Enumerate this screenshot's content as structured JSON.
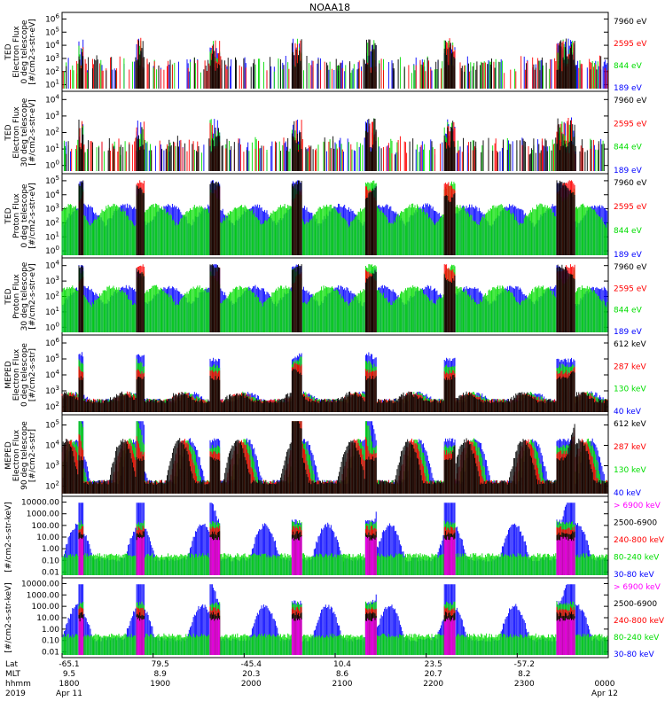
{
  "title": "NOAA18",
  "colors": {
    "blue": "#0000ff",
    "red": "#ff0000",
    "green": "#00dd00",
    "black": "#000000",
    "magenta": "#ff00ff"
  },
  "chart_data": [
    {
      "type": "line",
      "panel": "ted-electron-0",
      "ylabel": [
        "TED",
        "Electron Flux",
        "0 deg telescope",
        "[#/cm2-s-str-eV]"
      ],
      "yticks": [
        "10^1",
        "10^2",
        "10^3",
        "10^4",
        "10^5",
        "10^6"
      ],
      "yscale": "log",
      "legend": [
        "7960 eV",
        "2595 eV",
        "844 eV",
        "189 eV"
      ],
      "legend_colors": [
        "black",
        "red",
        "green",
        "blue"
      ]
    },
    {
      "type": "line",
      "panel": "ted-electron-30",
      "ylabel": [
        "TED",
        "Electron Flux",
        "30 deg telescope",
        "[#/cm2-s-str-eV]"
      ],
      "yticks": [
        "10^0",
        "10^1",
        "10^2",
        "10^3",
        "10^4"
      ],
      "yscale": "log",
      "legend": [
        "7960 eV",
        "2595 eV",
        "844 eV",
        "189 eV"
      ],
      "legend_colors": [
        "black",
        "red",
        "green",
        "blue"
      ]
    },
    {
      "type": "line",
      "panel": "ted-proton-0",
      "ylabel": [
        "TED",
        "Proton Flux",
        "0 deg telescope",
        "[#/cm2-s-str-eV]"
      ],
      "yticks": [
        "10^0",
        "10^1",
        "10^2",
        "10^3",
        "10^4",
        "10^5"
      ],
      "yscale": "log",
      "legend": [
        "7960 eV",
        "2595 eV",
        "844 eV",
        "189 eV"
      ],
      "legend_colors": [
        "black",
        "red",
        "green",
        "blue"
      ]
    },
    {
      "type": "line",
      "panel": "ted-proton-30",
      "ylabel": [
        "TED",
        "Proton Flux",
        "30 deg telescope",
        "[#/cm2-s-str-eV]"
      ],
      "yticks": [
        "10^0",
        "10^1",
        "10^2",
        "10^3",
        "10^4"
      ],
      "yscale": "log",
      "legend": [
        "7960 eV",
        "2595 eV",
        "844 eV",
        "189 eV"
      ],
      "legend_colors": [
        "black",
        "red",
        "green",
        "blue"
      ]
    },
    {
      "type": "line",
      "panel": "meped-electron-0",
      "ylabel": [
        "MEPED",
        "Electron Flux",
        "0 deg telescope",
        "[#/cm2-s-str]"
      ],
      "yticks": [
        "10^2",
        "10^3",
        "10^4",
        "10^5",
        "10^6"
      ],
      "yscale": "log",
      "legend": [
        "612 keV",
        "287 keV",
        "130 keV",
        "40 keV"
      ],
      "legend_colors": [
        "black",
        "red",
        "green",
        "blue"
      ]
    },
    {
      "type": "line",
      "panel": "meped-electron-90",
      "ylabel": [
        "MEPED",
        "Electron Flux",
        "90 deg telescope",
        "[#/cm2-s-str]"
      ],
      "yticks": [
        "10^2",
        "10^3",
        "10^4",
        "10^5"
      ],
      "yscale": "log",
      "legend": [
        "612 keV",
        "287 keV",
        "130 keV",
        "40 keV"
      ],
      "legend_colors": [
        "black",
        "red",
        "green",
        "blue"
      ]
    },
    {
      "type": "line",
      "panel": "meped-proton-0",
      "ylabel": [
        "[#/cm2-s-str-keV]"
      ],
      "yticks": [
        "0.01",
        "0.10",
        "1.00",
        "10.00",
        "100.00",
        "1000.00",
        "10000.00"
      ],
      "yscale": "log",
      "legend": [
        "> 6900 keV",
        "2500-6900",
        "240-800 keV",
        "80-240 keV",
        "30-80 keV"
      ],
      "legend_colors": [
        "magenta",
        "black",
        "red",
        "green",
        "blue"
      ]
    },
    {
      "type": "line",
      "panel": "meped-proton-90",
      "ylabel": [
        "[#/cm2-s-str-keV]"
      ],
      "yticks": [
        "0.01",
        "0.10",
        "1.00",
        "10.00",
        "100.00",
        "1000.00",
        "10000.00"
      ],
      "yscale": "log",
      "legend": [
        "> 6900 keV",
        "2500-6900",
        "240-800 keV",
        "80-240 keV",
        "30-80 keV"
      ],
      "legend_colors": [
        "magenta",
        "black",
        "red",
        "green",
        "blue"
      ]
    }
  ],
  "xaxis": {
    "rows": [
      {
        "label": "Lat",
        "values": [
          "-65.1",
          "79.5",
          "-45.4",
          "10.4",
          "23.5",
          "-57.2",
          ""
        ]
      },
      {
        "label": "MLT",
        "values": [
          "9.5",
          "8.9",
          "20.3",
          "8.6",
          "20.7",
          "8.2",
          ""
        ]
      },
      {
        "label": "hhmm",
        "values": [
          "1800",
          "1900",
          "2000",
          "2100",
          "2200",
          "2300",
          "0000"
        ]
      },
      {
        "label": "2019",
        "values": [
          "Apr 11",
          "",
          "",
          "",
          "",
          "",
          "Apr 12"
        ]
      }
    ]
  }
}
